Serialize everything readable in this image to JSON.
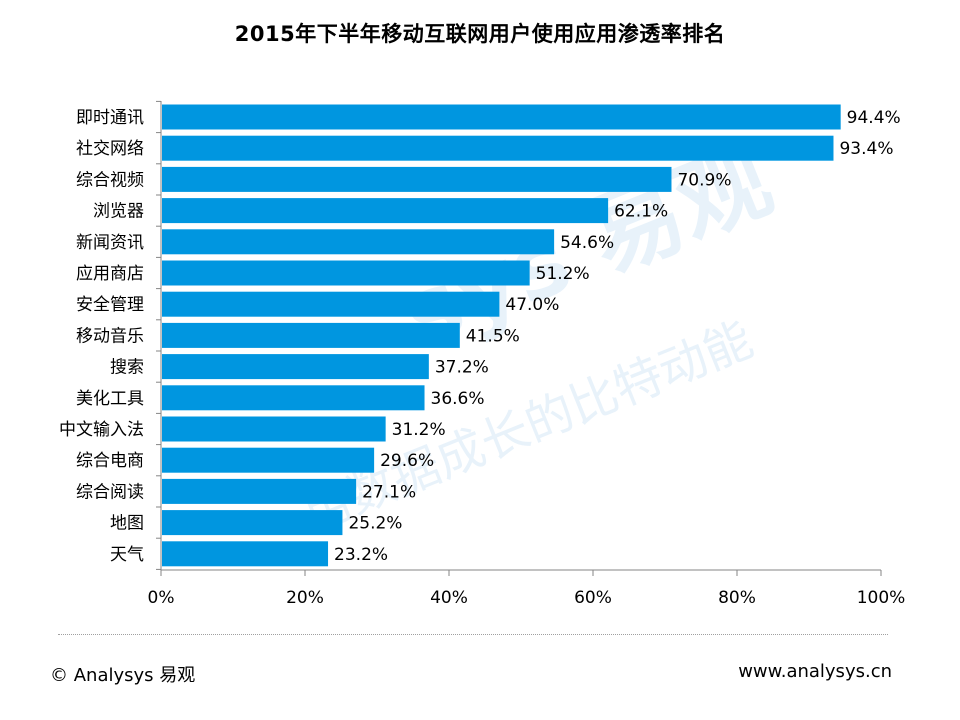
{
  "chart_data": {
    "type": "bar",
    "orientation": "horizontal",
    "title": "2015年下半年移动互联网用户使用应用渗透率排名",
    "categories": [
      "即时通讯",
      "社交网络",
      "综合视频",
      "浏览器",
      "新闻资讯",
      "应用商店",
      "安全管理",
      "移动音乐",
      "搜索",
      "美化工具",
      "中文输入法",
      "综合电商",
      "综合阅读",
      "地图",
      "天气"
    ],
    "values": [
      94.4,
      93.4,
      70.9,
      62.1,
      54.6,
      51.2,
      47.0,
      41.5,
      37.2,
      36.6,
      31.2,
      29.6,
      27.1,
      25.2,
      23.2
    ],
    "data_labels": [
      "94.4%",
      "93.4%",
      "70.9%",
      "62.1%",
      "54.6%",
      "51.2%",
      "47.0%",
      "41.5%",
      "37.2%",
      "36.6%",
      "31.2%",
      "29.6%",
      "27.1%",
      "25.2%",
      "23.2%"
    ],
    "x_ticks": [
      "0%",
      "20%",
      "40%",
      "60%",
      "80%",
      "100%"
    ],
    "xlim": [
      0,
      100
    ],
    "bar_color": "#0096e0",
    "grid": false,
    "legend": "none"
  },
  "watermark": {
    "brand": "sys 易观",
    "slogan": "用数据成长的比特动能"
  },
  "footer": {
    "left": "© Analysys 易观",
    "right": "www.analysys.cn"
  }
}
